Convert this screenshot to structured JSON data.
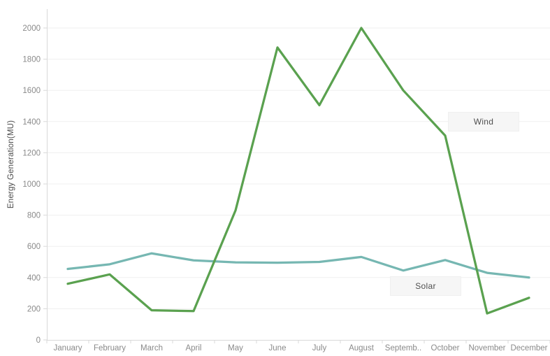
{
  "chart_data": {
    "type": "line",
    "title": "",
    "ylabel": "Energy Generation(MU)",
    "xlabel": "",
    "categories": [
      "January",
      "February",
      "March",
      "April",
      "May",
      "June",
      "July",
      "August",
      "September",
      "October",
      "November",
      "December"
    ],
    "category_display_labels": [
      "January",
      "February",
      "March",
      "April",
      "May",
      "June",
      "July",
      "August",
      "Septemb..",
      "October",
      "November",
      "December"
    ],
    "series": [
      {
        "name": "Wind",
        "color": "#5aa14f",
        "values": [
          360,
          420,
          190,
          185,
          830,
          1875,
          1505,
          2000,
          1600,
          1310,
          170,
          270
        ]
      },
      {
        "name": "Solar",
        "color": "#76b7b2",
        "values": [
          455,
          485,
          555,
          510,
          497,
          495,
          500,
          532,
          445,
          512,
          430,
          400
        ]
      }
    ],
    "y_ticks": [
      0,
      200,
      400,
      600,
      800,
      1000,
      1200,
      1400,
      1600,
      1800,
      2000
    ],
    "ylim": [
      0,
      2120
    ],
    "grid": true,
    "legend_position": "inline-annotation-boxes",
    "annotations": [
      {
        "text": "Wind"
      },
      {
        "text": "Solar"
      }
    ]
  },
  "colors": {
    "background": "#ffffff",
    "grid": "#efefef",
    "axis": "#d9d9d9",
    "tick_text": "#8a8a8a",
    "axis_title_text": "#4a4a4a",
    "annotation_bg": "#f6f6f6",
    "annotation_text": "#4f4f4f",
    "wind_line": "#5aa14f",
    "solar_line": "#76b7b2"
  }
}
